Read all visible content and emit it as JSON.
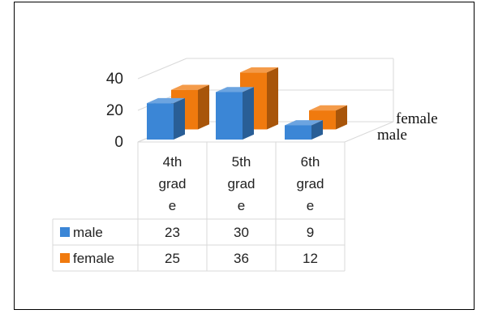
{
  "chart_data": {
    "type": "bar",
    "variant": "3d-column-with-data-table",
    "categories": [
      [
        "4th",
        "grad",
        "e"
      ],
      [
        "5th",
        "grad",
        "e"
      ],
      [
        "6th",
        "grad",
        "e"
      ]
    ],
    "series": [
      {
        "name": "male",
        "values": [
          23,
          30,
          9
        ],
        "color": "#3B86D6"
      },
      {
        "name": "female",
        "values": [
          25,
          36,
          12
        ],
        "color": "#F07A0E"
      }
    ],
    "depth_labels": [
      "female",
      "male"
    ],
    "yticks": [
      "40",
      "20",
      "0"
    ],
    "ylim": [
      0,
      40
    ],
    "grid": true,
    "title": "",
    "xlabel": "",
    "ylabel": ""
  }
}
